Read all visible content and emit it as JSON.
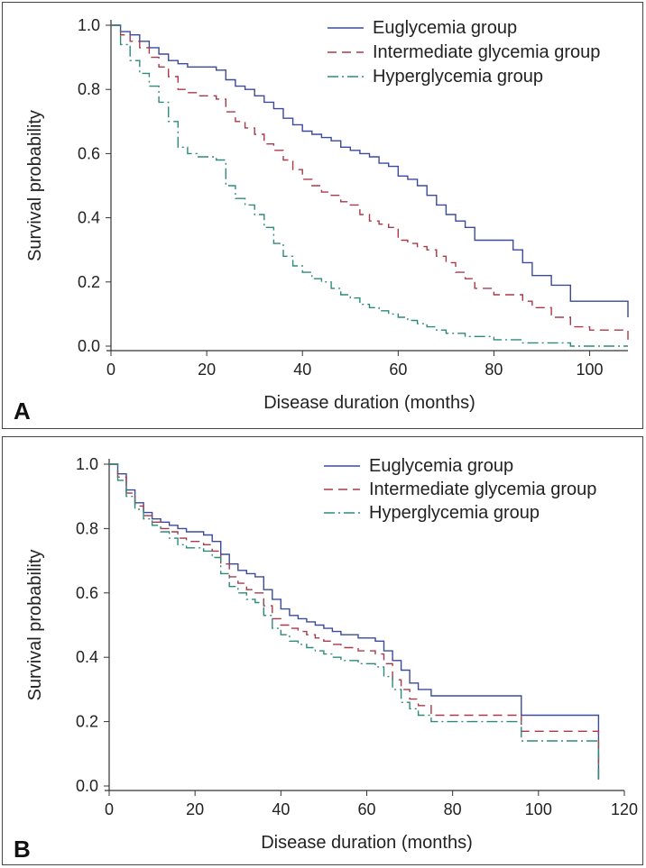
{
  "chart_data": [
    {
      "type": "line",
      "panel_label": "A",
      "title": "",
      "xlabel": "Disease duration (months)",
      "ylabel": "Survival probability",
      "xlim": [
        0,
        108
      ],
      "ylim": [
        0,
        1.0
      ],
      "x_ticks": [
        0,
        20,
        40,
        60,
        80,
        100
      ],
      "y_ticks": [
        0.0,
        0.2,
        0.4,
        0.6,
        0.8,
        1.0
      ],
      "legend_position": "top-right",
      "series": [
        {
          "name": "Euglycemia group",
          "color": "#3b4a9a",
          "dash": "solid",
          "x": [
            0,
            2,
            4,
            6,
            8,
            10,
            12,
            14,
            16,
            18,
            20,
            22,
            24,
            26,
            28,
            30,
            32,
            34,
            36,
            38,
            40,
            42,
            44,
            46,
            48,
            50,
            52,
            54,
            56,
            58,
            60,
            62,
            64,
            66,
            68,
            70,
            72,
            74,
            76,
            80,
            84,
            86,
            88,
            92,
            96,
            100,
            104,
            108
          ],
          "y": [
            1.0,
            0.98,
            0.97,
            0.95,
            0.93,
            0.91,
            0.89,
            0.88,
            0.87,
            0.87,
            0.87,
            0.86,
            0.83,
            0.81,
            0.8,
            0.78,
            0.76,
            0.74,
            0.71,
            0.69,
            0.67,
            0.66,
            0.65,
            0.64,
            0.62,
            0.61,
            0.6,
            0.59,
            0.57,
            0.56,
            0.53,
            0.52,
            0.5,
            0.47,
            0.44,
            0.41,
            0.39,
            0.37,
            0.33,
            0.33,
            0.3,
            0.26,
            0.22,
            0.19,
            0.14,
            0.14,
            0.14,
            0.09
          ]
        },
        {
          "name": "Intermediate glycemia group",
          "color": "#a8394a",
          "dash": "10,6",
          "x": [
            0,
            2,
            4,
            6,
            8,
            10,
            12,
            14,
            16,
            18,
            20,
            22,
            24,
            26,
            28,
            30,
            32,
            34,
            36,
            38,
            40,
            42,
            44,
            46,
            48,
            50,
            52,
            54,
            56,
            58,
            60,
            62,
            64,
            66,
            68,
            70,
            72,
            74,
            76,
            80,
            84,
            86,
            88,
            92,
            96,
            100,
            104,
            108
          ],
          "y": [
            1.0,
            0.97,
            0.95,
            0.93,
            0.9,
            0.87,
            0.84,
            0.8,
            0.79,
            0.78,
            0.78,
            0.77,
            0.73,
            0.7,
            0.68,
            0.66,
            0.63,
            0.61,
            0.58,
            0.55,
            0.52,
            0.5,
            0.48,
            0.47,
            0.45,
            0.44,
            0.41,
            0.39,
            0.38,
            0.37,
            0.33,
            0.32,
            0.31,
            0.3,
            0.28,
            0.26,
            0.23,
            0.21,
            0.18,
            0.16,
            0.16,
            0.14,
            0.12,
            0.09,
            0.06,
            0.05,
            0.05,
            0.02
          ]
        },
        {
          "name": "Hyperglycemia group",
          "color": "#2e8a7a",
          "dash": "12,4,2,4",
          "x": [
            0,
            2,
            4,
            6,
            8,
            10,
            12,
            14,
            16,
            18,
            20,
            22,
            24,
            26,
            28,
            30,
            32,
            34,
            36,
            38,
            40,
            42,
            44,
            46,
            48,
            50,
            52,
            54,
            56,
            58,
            60,
            62,
            64,
            66,
            68,
            70,
            72,
            74,
            76,
            80,
            84,
            86,
            88,
            92,
            96,
            100,
            104,
            108
          ],
          "y": [
            1.0,
            0.94,
            0.89,
            0.85,
            0.81,
            0.76,
            0.7,
            0.62,
            0.6,
            0.59,
            0.59,
            0.58,
            0.5,
            0.46,
            0.44,
            0.41,
            0.37,
            0.32,
            0.28,
            0.25,
            0.23,
            0.21,
            0.2,
            0.18,
            0.16,
            0.15,
            0.13,
            0.12,
            0.11,
            0.1,
            0.09,
            0.08,
            0.07,
            0.06,
            0.05,
            0.04,
            0.04,
            0.03,
            0.03,
            0.02,
            0.02,
            0.01,
            0.01,
            0.01,
            0.0,
            0.0,
            0.0,
            0.0
          ]
        }
      ]
    },
    {
      "type": "line",
      "panel_label": "B",
      "title": "",
      "xlabel": "Disease duration (months)",
      "ylabel": "Survival probability",
      "xlim": [
        0,
        120
      ],
      "ylim": [
        0,
        1.0
      ],
      "x_ticks": [
        0,
        20,
        40,
        60,
        80,
        100,
        120
      ],
      "y_ticks": [
        0.0,
        0.2,
        0.4,
        0.6,
        0.8,
        1.0
      ],
      "legend_position": "top-right",
      "series": [
        {
          "name": "Euglycemia group",
          "color": "#3b4a9a",
          "dash": "solid",
          "x": [
            0,
            2,
            4,
            6,
            8,
            10,
            12,
            14,
            16,
            18,
            20,
            22,
            24,
            26,
            28,
            30,
            32,
            34,
            36,
            38,
            40,
            42,
            44,
            46,
            48,
            50,
            52,
            54,
            56,
            58,
            60,
            62,
            64,
            66,
            68,
            70,
            72,
            75,
            80,
            90,
            96,
            100,
            110,
            114
          ],
          "y": [
            1.0,
            0.97,
            0.92,
            0.88,
            0.85,
            0.83,
            0.82,
            0.81,
            0.8,
            0.79,
            0.79,
            0.78,
            0.76,
            0.72,
            0.69,
            0.67,
            0.66,
            0.65,
            0.61,
            0.58,
            0.55,
            0.53,
            0.52,
            0.51,
            0.5,
            0.49,
            0.48,
            0.47,
            0.47,
            0.46,
            0.46,
            0.45,
            0.42,
            0.39,
            0.36,
            0.32,
            0.3,
            0.28,
            0.28,
            0.28,
            0.22,
            0.22,
            0.22,
            0.02
          ]
        },
        {
          "name": "Intermediate glycemia group",
          "color": "#a8394a",
          "dash": "10,6",
          "x": [
            0,
            2,
            4,
            6,
            8,
            10,
            12,
            14,
            16,
            18,
            20,
            22,
            24,
            26,
            28,
            30,
            32,
            34,
            36,
            38,
            40,
            42,
            44,
            46,
            48,
            50,
            52,
            54,
            56,
            58,
            60,
            62,
            64,
            66,
            68,
            70,
            72,
            75,
            80,
            90,
            96,
            100,
            110,
            114
          ],
          "y": [
            1.0,
            0.96,
            0.91,
            0.87,
            0.84,
            0.82,
            0.8,
            0.79,
            0.77,
            0.76,
            0.76,
            0.75,
            0.73,
            0.69,
            0.65,
            0.63,
            0.61,
            0.6,
            0.56,
            0.52,
            0.5,
            0.49,
            0.48,
            0.47,
            0.46,
            0.45,
            0.44,
            0.43,
            0.43,
            0.42,
            0.42,
            0.41,
            0.38,
            0.33,
            0.3,
            0.27,
            0.25,
            0.22,
            0.22,
            0.22,
            0.17,
            0.17,
            0.17,
            0.02
          ]
        },
        {
          "name": "Hyperglycemia group",
          "color": "#2e8a7a",
          "dash": "12,4,2,4",
          "x": [
            0,
            2,
            4,
            6,
            8,
            10,
            12,
            14,
            16,
            18,
            20,
            22,
            24,
            26,
            28,
            30,
            32,
            34,
            36,
            38,
            40,
            42,
            44,
            46,
            48,
            50,
            52,
            54,
            56,
            58,
            60,
            62,
            64,
            66,
            68,
            70,
            72,
            75,
            80,
            90,
            96,
            100,
            110,
            114
          ],
          "y": [
            1.0,
            0.95,
            0.9,
            0.86,
            0.83,
            0.81,
            0.79,
            0.77,
            0.75,
            0.74,
            0.74,
            0.73,
            0.71,
            0.66,
            0.62,
            0.6,
            0.58,
            0.57,
            0.53,
            0.49,
            0.47,
            0.45,
            0.44,
            0.43,
            0.42,
            0.41,
            0.4,
            0.39,
            0.39,
            0.38,
            0.38,
            0.37,
            0.34,
            0.3,
            0.26,
            0.24,
            0.22,
            0.2,
            0.2,
            0.2,
            0.14,
            0.14,
            0.14,
            0.02
          ]
        }
      ]
    }
  ]
}
